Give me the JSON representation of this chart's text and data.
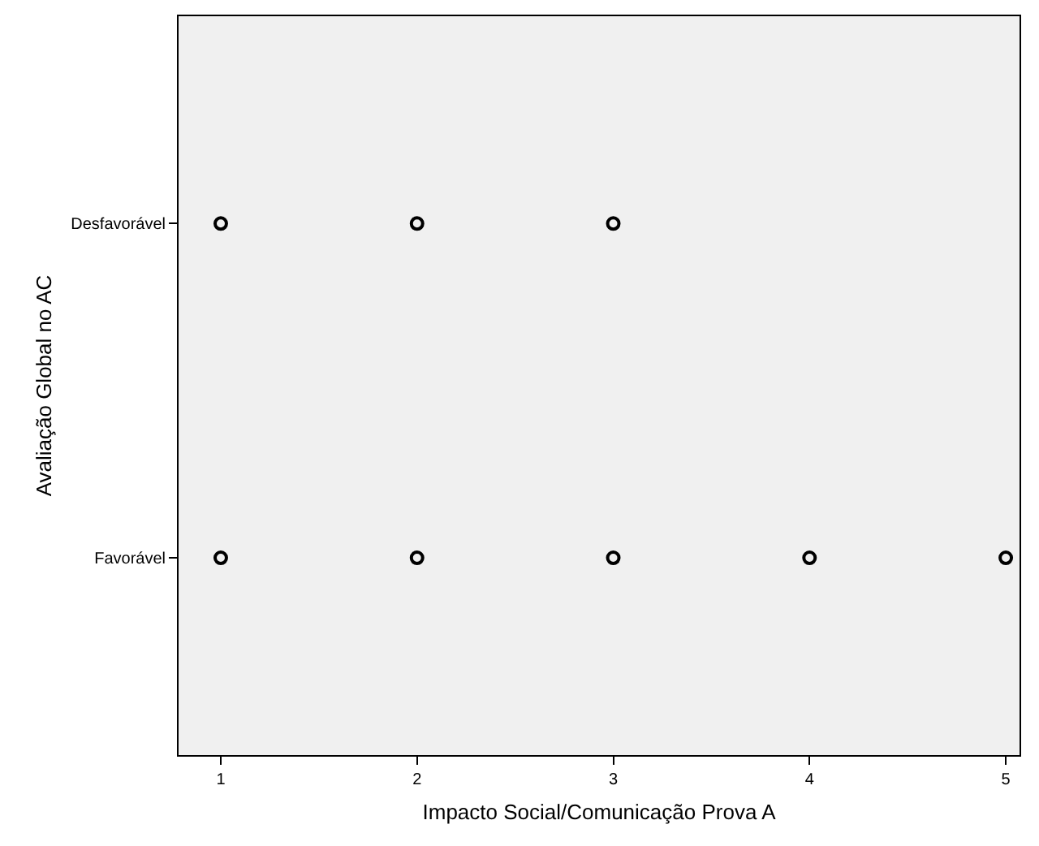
{
  "chart_data": {
    "type": "scatter",
    "orientation": "horizontal",
    "xlabel": "Impacto Social/Comunicação Prova A",
    "ylabel": "Avaliação Global no AC",
    "categories": [
      "Desfavorável",
      "Favorável"
    ],
    "series": [
      {
        "color": "#000000",
        "values": [
          1,
          1
        ]
      },
      {
        "color": "#000000",
        "values": [
          2,
          2
        ]
      },
      {
        "color": "#000000",
        "values": [
          3,
          3
        ]
      },
      {
        "color": "#000000",
        "values": [
          null,
          4
        ]
      },
      {
        "color": "#000000",
        "values": [
          null,
          5
        ]
      }
    ],
    "xlim": [
      0.785,
      5.07
    ],
    "xticks": [
      1,
      2,
      3,
      4,
      5
    ],
    "marker": "circle"
  }
}
